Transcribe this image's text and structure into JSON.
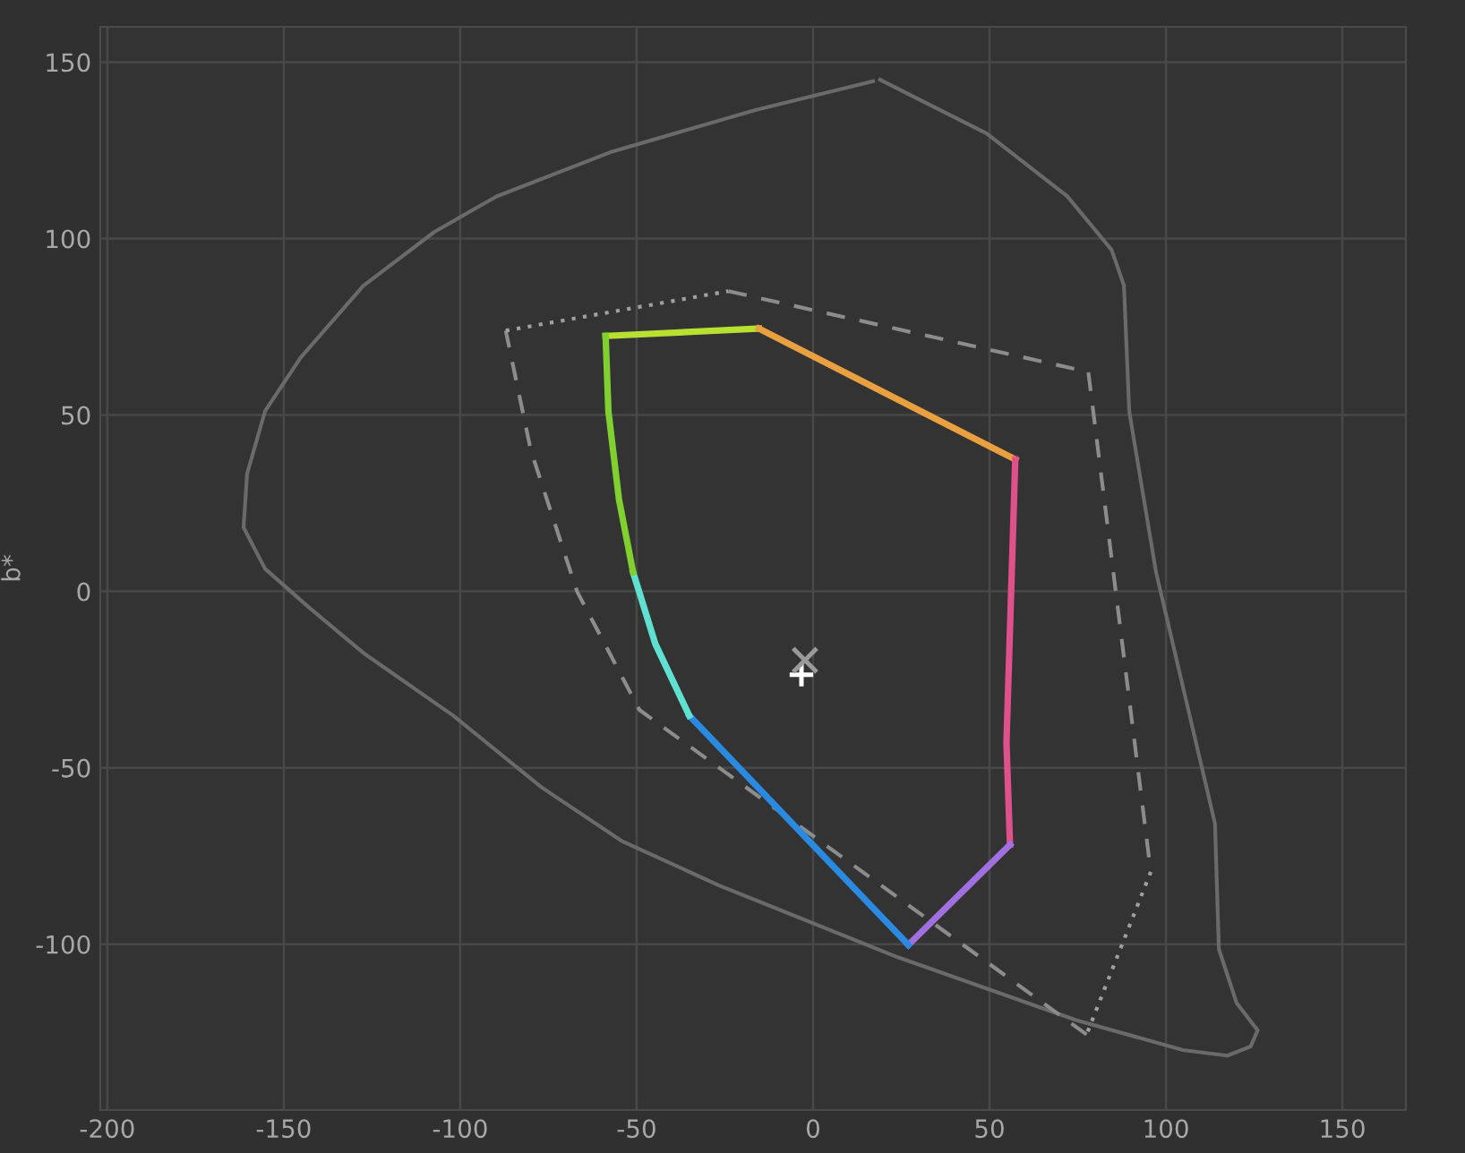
{
  "chart_data": {
    "type": "line",
    "ylabel": "b*",
    "xlim": [
      -202,
      168
    ],
    "ylim": [
      -147,
      160
    ],
    "xticks": [
      -200,
      -150,
      -100,
      -50,
      0,
      50,
      100,
      150
    ],
    "yticks": [
      -100,
      -50,
      0,
      50,
      100,
      150
    ],
    "grid": true,
    "legend": false,
    "series": [
      {
        "color": "#6a6a6a",
        "line_style": "solid",
        "x": [
          19,
          49.2,
          72,
          84.6,
          88.1,
          89.6,
          97.2,
          113.9,
          115,
          120,
          126,
          124,
          117.4,
          104.8,
          74.5,
          24,
          -26.5,
          -54.3,
          -77,
          -102,
          -127.5,
          -142.7,
          -155.3,
          -161.4,
          -160.4,
          -155.3,
          -145.2,
          -127.5,
          -107.3,
          -89.6,
          -56.8,
          -16.4,
          17
        ],
        "values": [
          145,
          129.8,
          112,
          96.8,
          86.7,
          51,
          5.4,
          -65.8,
          -101.4,
          -116.6,
          -124.4,
          -129,
          -131.6,
          -130,
          -121.5,
          -103.7,
          -83.4,
          -70.7,
          -55.5,
          -35.2,
          -17.4,
          -4.7,
          6.4,
          18.1,
          33.3,
          51.1,
          66.3,
          86.6,
          101.9,
          112,
          124.7,
          136.4,
          144.6
        ]
      },
      {
        "color": "#8c8c8c",
        "line_style": "dashed",
        "x": [
          -24,
          78,
          95.7
        ],
        "values": [
          85.1,
          62.2,
          -79.5
        ]
      },
      {
        "color": "#a0a0a0",
        "line_style": "dotted",
        "x": [
          95.7,
          77.5
        ],
        "values": [
          -79.5,
          -125.6
        ]
      },
      {
        "color": "#8c8c8c",
        "line_style": "dashed",
        "x": [
          77.5,
          -49.2,
          -66.9,
          -80,
          -87.1
        ],
        "values": [
          -125.6,
          -33.6,
          0,
          40,
          73.9
        ]
      },
      {
        "color": "#a0a0a0",
        "line_style": "dotted",
        "x": [
          -87.1,
          -24
        ],
        "values": [
          73.9,
          85.1
        ]
      },
      {
        "color": "#b8e030",
        "line_style": "solid",
        "x": [
          -58.8,
          -15.4
        ],
        "values": [
          72.4,
          74.5
        ]
      },
      {
        "color": "#e8a040",
        "line_style": "solid",
        "x": [
          -15.4,
          57.3
        ],
        "values": [
          74.5,
          37.4
        ]
      },
      {
        "color": "#e0508a",
        "line_style": "solid",
        "x": [
          57.3,
          54.8,
          55.8
        ],
        "values": [
          37.4,
          -42.8,
          -71.8
        ]
      },
      {
        "color": "#a070e0",
        "line_style": "solid",
        "x": [
          55.8,
          27
        ],
        "values": [
          -71.8,
          -100.2
        ]
      },
      {
        "color": "#2a8ae0",
        "line_style": "solid",
        "x": [
          27,
          -35.1
        ],
        "values": [
          -100.2,
          -35.2
        ]
      },
      {
        "color": "#60e0d0",
        "line_style": "solid",
        "x": [
          -35.1,
          -44.7,
          -51
        ],
        "values": [
          -35.2,
          -14.9,
          5.4
        ]
      },
      {
        "color": "#80d030",
        "line_style": "solid",
        "x": [
          -51,
          -55,
          -58,
          -58.8
        ],
        "values": [
          5.4,
          26,
          51,
          72.4
        ]
      },
      {
        "type": "scatter",
        "marker": "plus",
        "color": "#ffffff",
        "x": [
          -3.3
        ],
        "values": [
          -23.6
        ]
      },
      {
        "type": "scatter",
        "marker": "cross",
        "color": "#9a9a9a",
        "x": [
          -2.3
        ],
        "values": [
          -19.5
        ]
      }
    ]
  }
}
